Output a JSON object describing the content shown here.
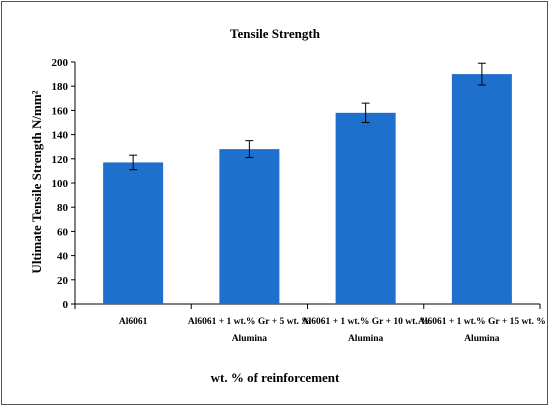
{
  "chart_data": {
    "type": "bar",
    "title": "Tensile Strength",
    "xlabel": "wt. % of  reinforcement",
    "ylabel": "Ultimate Tensile  Strength  N/mm²",
    "categories": [
      "Al6061",
      "Al6061 + 1 wt.% Gr + 5 wt. % Alumina",
      "Al6061 + 1 wt.% Gr + 10 wt. % Alumina",
      "Al6061 + 1 wt.% Gr + 15 wt. % Alumina"
    ],
    "values": [
      117,
      128,
      158,
      190
    ],
    "errors": [
      6,
      7,
      8,
      9
    ],
    "ylim": [
      0,
      200
    ],
    "yticks": [
      0,
      20,
      40,
      60,
      80,
      100,
      120,
      140,
      160,
      180,
      200
    ],
    "ytick_labels": [
      "0",
      "20",
      "40",
      "60",
      "80",
      "100",
      "120",
      "140",
      "160",
      "180",
      "200"
    ],
    "grid": false,
    "legend": "none",
    "bar_color": "#1f6fcc"
  }
}
